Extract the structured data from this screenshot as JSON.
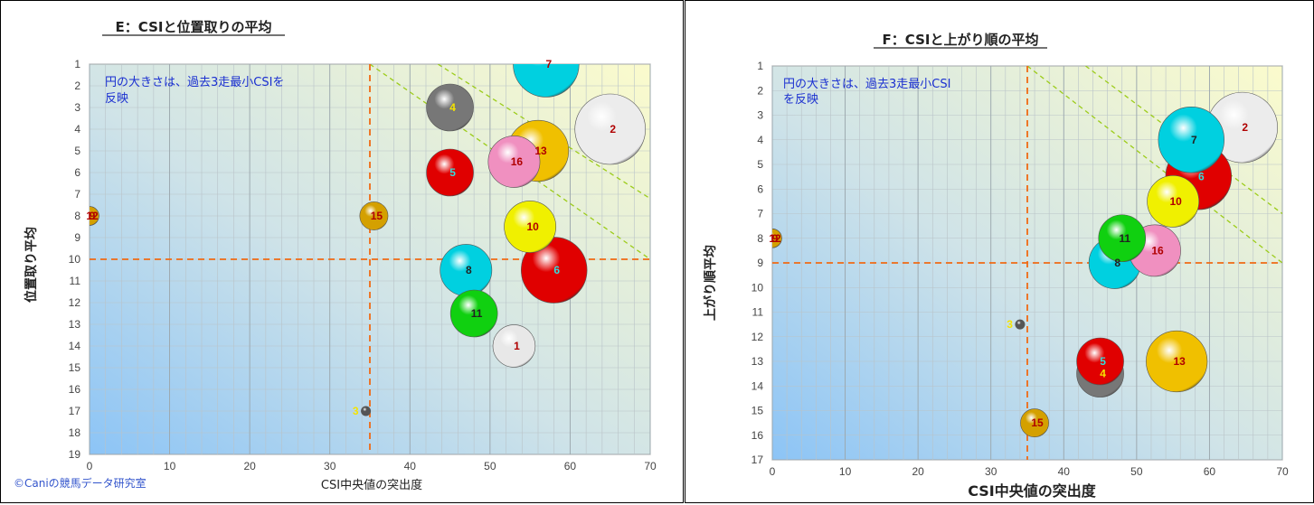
{
  "charts": [
    {
      "title": "E：CSIと位置取りの平均",
      "note_lines": [
        "円の大きさは、過去3走最小CSIを",
        "反映"
      ],
      "xlabel": "CSI中央値の突出度",
      "ylabel": "位置取り平均",
      "copyright": "©Caniの競馬データ研究室"
    },
    {
      "title": "F：CSIと上がり順の平均",
      "note_lines": [
        "円の大きさは、過去3走最小CSI",
        "を反映"
      ],
      "xlabel": "CSI中央値の突出度",
      "ylabel": "上がり順平均"
    }
  ],
  "chart_data": [
    {
      "type": "scatter",
      "title": "E：CSIと位置取りの平均",
      "xlabel": "CSI中央値の突出度",
      "ylabel": "位置取り平均",
      "xlim": [
        0,
        70
      ],
      "ylim": [
        1,
        19
      ],
      "y_inverted": true,
      "x_ticks": [
        0,
        10,
        20,
        30,
        40,
        50,
        60,
        70
      ],
      "y_ticks": [
        1,
        2,
        3,
        4,
        5,
        6,
        7,
        8,
        9,
        10,
        11,
        12,
        13,
        14,
        15,
        16,
        17,
        18,
        19
      ],
      "grid": true,
      "ref_x": 35,
      "ref_y": 10,
      "points": [
        {
          "label": "12",
          "x": 0,
          "y": 8,
          "color": "#d4a000",
          "size": 2,
          "label_color": "#b00000"
        },
        {
          "label": "9",
          "x": 0,
          "y": 8,
          "color": "#d4a000",
          "size": 2,
          "label_color": "#b00000"
        },
        {
          "label": "3",
          "x": 34.5,
          "y": 17,
          "color": "#555555",
          "size": 1,
          "label_color": "#f5e300"
        },
        {
          "label": "15",
          "x": 35.5,
          "y": 8,
          "color": "#d4a000",
          "size": 3,
          "label_color": "#b00000"
        },
        {
          "label": "4",
          "x": 45,
          "y": 3,
          "color": "#777777",
          "size": 5,
          "label_color": "#f5e300"
        },
        {
          "label": "5",
          "x": 45,
          "y": 6,
          "color": "#e00000",
          "size": 5,
          "label_color": "#33dddd"
        },
        {
          "label": "8",
          "x": 47,
          "y": 10.5,
          "color": "#00d0e0",
          "size": 5.5,
          "label_color": "#222222"
        },
        {
          "label": "11",
          "x": 48,
          "y": 12.5,
          "color": "#10d010",
          "size": 5,
          "label_color": "#222222"
        },
        {
          "label": "1",
          "x": 53,
          "y": 14,
          "color": "#e8e8e8",
          "size": 4.5,
          "label_color": "#b00000"
        },
        {
          "label": "10",
          "x": 55,
          "y": 8.5,
          "color": "#f0f000",
          "size": 5.5,
          "label_color": "#b00000"
        },
        {
          "label": "13",
          "x": 56,
          "y": 5,
          "color": "#f0c000",
          "size": 6.5,
          "label_color": "#b00000"
        },
        {
          "label": "16",
          "x": 53,
          "y": 5.5,
          "color": "#f090c0",
          "size": 5.5,
          "label_color": "#b00000"
        },
        {
          "label": "6",
          "x": 58,
          "y": 10.5,
          "color": "#e00000",
          "size": 7,
          "label_color": "#33dddd"
        },
        {
          "label": "7",
          "x": 57,
          "y": 1,
          "color": "#00d0e0",
          "size": 7,
          "label_color": "#b00000"
        },
        {
          "label": "2",
          "x": 65,
          "y": 4,
          "color": "#ececec",
          "size": 7.5,
          "label_color": "#b00000"
        }
      ],
      "trend_lines": [
        {
          "from": [
            35,
            1
          ],
          "to": [
            70,
            10
          ]
        },
        {
          "from": [
            43.5,
            1
          ],
          "to": [
            70,
            7.2
          ]
        }
      ]
    },
    {
      "type": "scatter",
      "title": "F：CSIと上がり順の平均",
      "xlabel": "CSI中央値の突出度",
      "ylabel": "上がり順平均",
      "xlim": [
        0,
        70
      ],
      "ylim": [
        1,
        17
      ],
      "y_inverted": true,
      "x_ticks": [
        0,
        10,
        20,
        30,
        40,
        50,
        60,
        70
      ],
      "y_ticks": [
        1,
        2,
        3,
        4,
        5,
        6,
        7,
        8,
        9,
        10,
        11,
        12,
        13,
        14,
        15,
        16,
        17
      ],
      "grid": true,
      "ref_x": 35,
      "ref_y": 9,
      "points": [
        {
          "label": "12",
          "x": 0,
          "y": 8,
          "color": "#d4a000",
          "size": 2,
          "label_color": "#b00000"
        },
        {
          "label": "9",
          "x": 0,
          "y": 8,
          "color": "#d4a000",
          "size": 2,
          "label_color": "#b00000"
        },
        {
          "label": "3",
          "x": 34,
          "y": 11.5,
          "color": "#555555",
          "size": 1,
          "label_color": "#f5e300"
        },
        {
          "label": "15",
          "x": 36,
          "y": 15.5,
          "color": "#d4a000",
          "size": 3,
          "label_color": "#b00000"
        },
        {
          "label": "4",
          "x": 45,
          "y": 13.5,
          "color": "#777777",
          "size": 5,
          "label_color": "#f5e300"
        },
        {
          "label": "5",
          "x": 45,
          "y": 13,
          "color": "#e00000",
          "size": 5,
          "label_color": "#33dddd"
        },
        {
          "label": "8",
          "x": 47,
          "y": 9,
          "color": "#00d0e0",
          "size": 5.5,
          "label_color": "#222222"
        },
        {
          "label": "11",
          "x": 48,
          "y": 8,
          "color": "#10d010",
          "size": 5,
          "label_color": "#222222"
        },
        {
          "label": "16",
          "x": 52.5,
          "y": 8.5,
          "color": "#f090c0",
          "size": 5.5,
          "label_color": "#b00000"
        },
        {
          "label": "10",
          "x": 55,
          "y": 6.5,
          "color": "#f0f000",
          "size": 5.5,
          "label_color": "#b00000"
        },
        {
          "label": "13",
          "x": 55.5,
          "y": 13,
          "color": "#f0c000",
          "size": 6.5,
          "label_color": "#b00000"
        },
        {
          "label": "6",
          "x": 58.5,
          "y": 5.5,
          "color": "#e00000",
          "size": 7,
          "label_color": "#33dddd"
        },
        {
          "label": "7",
          "x": 57.5,
          "y": 4,
          "color": "#00d0e0",
          "size": 7,
          "label_color": "#222222"
        },
        {
          "label": "2",
          "x": 64.5,
          "y": 3.5,
          "color": "#ececec",
          "size": 7.5,
          "label_color": "#b00000"
        }
      ],
      "trend_lines": [
        {
          "from": [
            35,
            1
          ],
          "to": [
            70,
            9
          ]
        },
        {
          "from": [
            43,
            1
          ],
          "to": [
            70,
            7
          ]
        }
      ]
    }
  ]
}
